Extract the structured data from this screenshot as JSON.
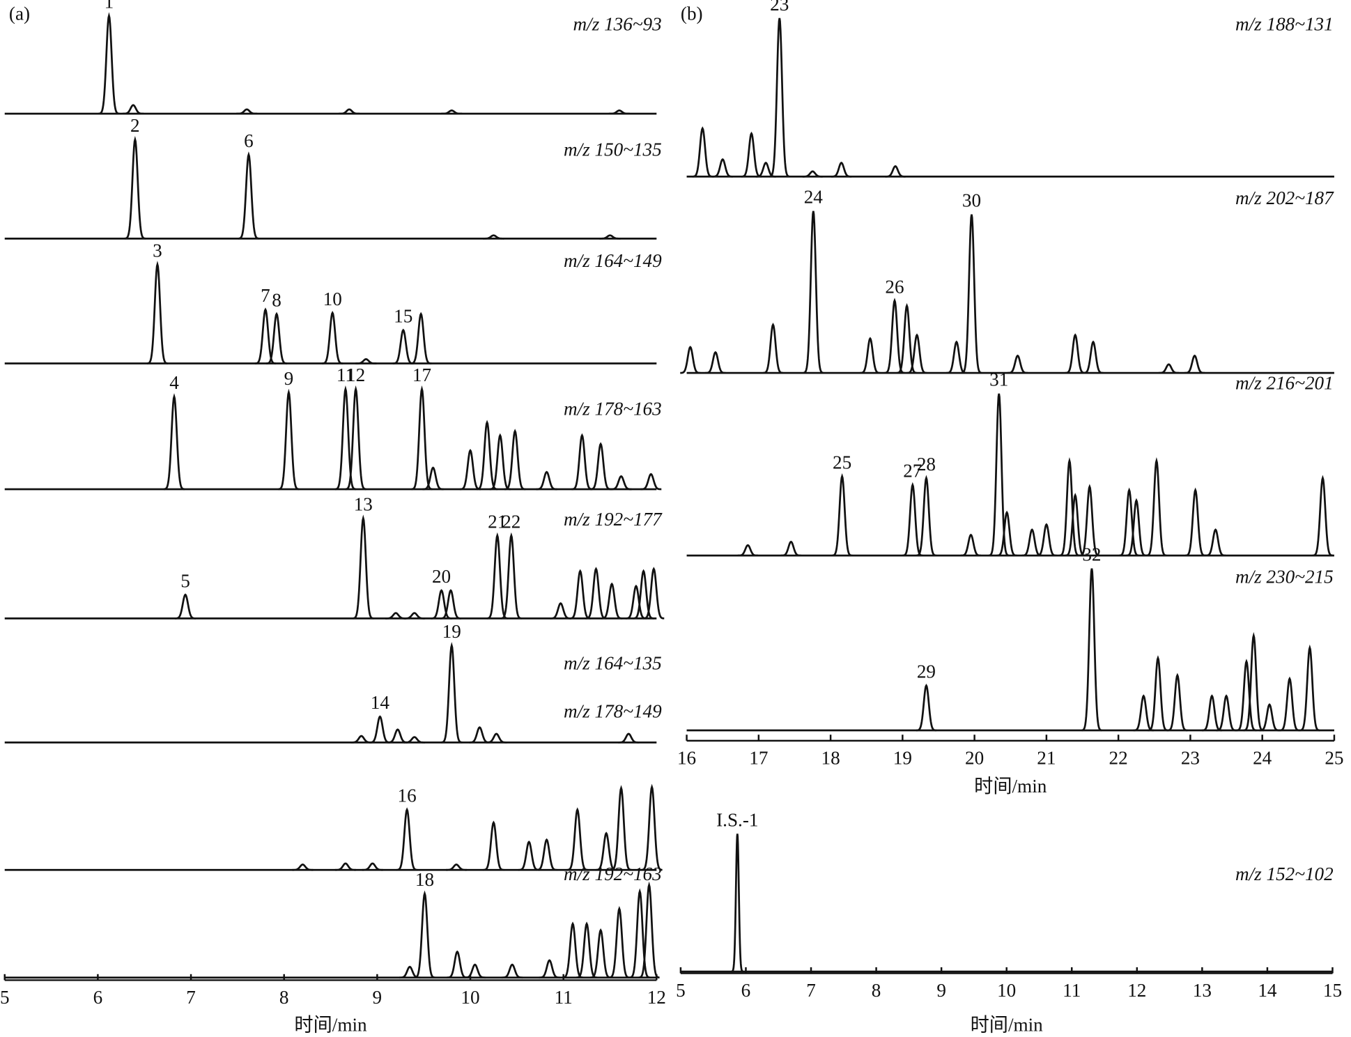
{
  "chart_data": [
    {
      "type": "chromatogram",
      "panel": "(a)",
      "xlabel": "时间/min",
      "xlim": [
        5,
        12
      ],
      "xticks": [
        5,
        6,
        7,
        8,
        9,
        10,
        11,
        12
      ],
      "ylim": [
        0,
        100
      ],
      "traces": [
        {
          "name": "m/z 136~93",
          "x": [
            6.12,
            6.38,
            7.6,
            8.7,
            9.8,
            11.6
          ],
          "values": [
            91,
            8,
            4,
            4,
            3,
            3
          ],
          "labels": [
            "1",
            null,
            null,
            null,
            null,
            null
          ]
        },
        {
          "name": "m/z 150~135",
          "x": [
            6.4,
            7.62,
            10.25,
            11.5
          ],
          "values": [
            92,
            78,
            3,
            3
          ],
          "labels": [
            "2",
            "6",
            null,
            null
          ]
        },
        {
          "name": "m/z 164~149",
          "x": [
            6.64,
            7.8,
            7.92,
            8.52,
            8.88,
            9.28,
            9.47
          ],
          "values": [
            92,
            50,
            46,
            47,
            4,
            31,
            46
          ],
          "labels": [
            "3",
            "7",
            "8",
            "10",
            null,
            "15",
            null
          ]
        },
        {
          "name": "m/z 178~163",
          "x": [
            6.82,
            8.05,
            8.66,
            8.77,
            9.48,
            9.6,
            10.0,
            10.18,
            10.32,
            10.48,
            10.82,
            11.2,
            11.4,
            11.62,
            11.94
          ],
          "values": [
            86,
            90,
            93,
            93,
            93,
            20,
            36,
            62,
            50,
            54,
            16,
            50,
            42,
            12,
            14
          ],
          "labels": [
            "4",
            "9",
            "11",
            "12",
            "17",
            null,
            null,
            null,
            null,
            null,
            null,
            null,
            null,
            null,
            null
          ]
        },
        {
          "name": "m/z 192~177",
          "x": [
            6.94,
            8.85,
            9.2,
            9.4,
            9.69,
            9.79,
            10.29,
            10.44,
            10.97,
            11.18,
            11.35,
            11.52,
            11.78,
            11.86,
            11.97
          ],
          "values": [
            22,
            93,
            5,
            5,
            26,
            26,
            77,
            77,
            14,
            44,
            46,
            32,
            30,
            44,
            46
          ],
          "labels": [
            "5",
            "13",
            null,
            null,
            "20",
            null,
            "21",
            "22",
            null,
            null,
            null,
            null,
            null,
            null,
            null
          ]
        },
        {
          "name": "m/z 164~135",
          "x": [
            8.83,
            9.03,
            9.22,
            9.4,
            9.8,
            10.1,
            10.28,
            11.7
          ],
          "values": [
            6,
            24,
            12,
            5,
            90,
            14,
            8,
            8
          ],
          "labels": [
            null,
            "14",
            null,
            null,
            "19",
            null,
            null,
            null
          ]
        },
        {
          "name": "m/z 178~149",
          "x": [
            8.2,
            8.66,
            8.95,
            9.32,
            9.85,
            10.25,
            10.63,
            10.82,
            11.15,
            11.46,
            11.62,
            11.95
          ],
          "values": [
            5,
            6,
            6,
            56,
            5,
            44,
            26,
            28,
            56,
            34,
            76,
            77
          ],
          "labels": [
            null,
            null,
            null,
            "16",
            null,
            null,
            null,
            null,
            null,
            null,
            null,
            null
          ]
        },
        {
          "name": "m/z 192~163",
          "x": [
            9.35,
            9.51,
            9.86,
            10.05,
            10.45,
            10.85,
            11.1,
            11.25,
            11.4,
            11.6,
            11.82,
            11.92
          ],
          "values": [
            10,
            78,
            24,
            12,
            12,
            16,
            50,
            50,
            44,
            64,
            80,
            86
          ],
          "labels": [
            null,
            "18",
            null,
            null,
            null,
            null,
            null,
            null,
            null,
            null,
            null,
            null
          ]
        }
      ]
    },
    {
      "type": "chromatogram",
      "panel": "(b)",
      "xlabel": "时间/min",
      "xlim": [
        16,
        25
      ],
      "xticks": [
        16,
        17,
        18,
        19,
        20,
        21,
        22,
        23,
        24,
        25
      ],
      "ylim": [
        0,
        100
      ],
      "traces": [
        {
          "name": "m/z 188~131",
          "x": [
            16.22,
            16.5,
            16.9,
            17.1,
            17.29,
            17.75,
            18.15,
            18.9
          ],
          "values": [
            28,
            10,
            25,
            8,
            92,
            3,
            8,
            6
          ],
          "labels": [
            null,
            null,
            null,
            null,
            "23",
            null,
            null,
            null
          ]
        },
        {
          "name": "m/z 202~187",
          "x": [
            16.05,
            16.4,
            17.2,
            17.76,
            18.55,
            18.89,
            19.06,
            19.2,
            19.75,
            19.96,
            20.6,
            21.4,
            21.65,
            22.7,
            23.06
          ],
          "values": [
            15,
            12,
            28,
            94,
            20,
            42,
            39,
            22,
            18,
            92,
            10,
            22,
            18,
            5,
            10
          ],
          "labels": [
            null,
            null,
            null,
            "24",
            null,
            "26",
            null,
            null,
            null,
            "30",
            null,
            null,
            null,
            null,
            null
          ]
        },
        {
          "name": "m/z 216~201",
          "x": [
            16.85,
            17.45,
            18.16,
            19.14,
            19.33,
            19.95,
            20.34,
            20.45,
            20.8,
            21.0,
            21.32,
            21.4,
            21.6,
            22.15,
            22.25,
            22.53,
            23.07,
            23.35,
            24.84
          ],
          "values": [
            6,
            8,
            46,
            41,
            45,
            12,
            94,
            25,
            15,
            18,
            55,
            35,
            40,
            38,
            32,
            55,
            38,
            15,
            45
          ],
          "labels": [
            null,
            null,
            "25",
            "27",
            "28",
            null,
            "31",
            null,
            null,
            null,
            null,
            null,
            null,
            null,
            null,
            null,
            null,
            null,
            null
          ]
        },
        {
          "name": "m/z 230~215",
          "x": [
            19.33,
            21.63,
            22.35,
            22.55,
            22.82,
            23.3,
            23.5,
            23.78,
            23.88,
            24.1,
            24.38,
            24.66
          ],
          "values": [
            26,
            94,
            20,
            42,
            32,
            20,
            20,
            40,
            55,
            15,
            30,
            48
          ],
          "labels": [
            "29",
            "32",
            null,
            null,
            null,
            null,
            null,
            null,
            null,
            null,
            null,
            null
          ]
        }
      ]
    },
    {
      "type": "chromatogram",
      "xlabel": "时间/min",
      "xlim": [
        5,
        15
      ],
      "xticks": [
        5,
        6,
        7,
        8,
        9,
        10,
        11,
        12,
        13,
        14,
        15
      ],
      "ylim": [
        0,
        100
      ],
      "traces": [
        {
          "name": "m/z 152~102",
          "x": [
            5.87
          ],
          "values": [
            80
          ],
          "labels": [
            "I.S.-1"
          ]
        }
      ]
    }
  ]
}
